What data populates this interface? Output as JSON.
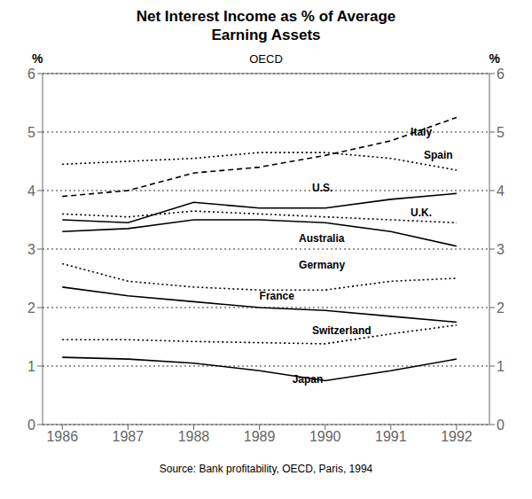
{
  "chart_data": {
    "type": "line",
    "title": "Net Interest Income as % of Average\nEarning Assets",
    "subtitle": "OECD",
    "y_label": "%",
    "y2_label": "%",
    "source": "Source: Bank profitability, OECD, Paris, 1994",
    "x": [
      1986,
      1987,
      1988,
      1989,
      1990,
      1991,
      1992
    ],
    "series": [
      {
        "name": "Italy",
        "color": "black",
        "line_style": "dashed",
        "values": [
          3.9,
          4.0,
          4.3,
          4.4,
          4.6,
          4.85,
          5.25
        ]
      },
      {
        "name": "Spain",
        "color": "black",
        "line_style": "dotted",
        "values": [
          4.45,
          4.5,
          4.55,
          4.65,
          4.65,
          4.55,
          4.35
        ]
      },
      {
        "name": "U.S.",
        "color": "black",
        "line_style": "solid",
        "values": [
          3.5,
          3.45,
          3.8,
          3.7,
          3.7,
          3.85,
          3.95
        ]
      },
      {
        "name": "U.K.",
        "color": "black",
        "line_style": "dotted",
        "values": [
          3.6,
          3.55,
          3.65,
          3.6,
          3.55,
          3.5,
          3.45
        ]
      },
      {
        "name": "Australia",
        "color": "black",
        "line_style": "solid",
        "values": [
          3.3,
          3.35,
          3.5,
          3.5,
          3.45,
          3.3,
          3.05
        ]
      },
      {
        "name": "Germany",
        "color": "black",
        "line_style": "dotted",
        "values": [
          2.75,
          2.45,
          2.35,
          2.3,
          2.3,
          2.45,
          2.5
        ]
      },
      {
        "name": "France",
        "color": "black",
        "line_style": "solid",
        "values": [
          2.35,
          2.2,
          2.1,
          2.0,
          1.95,
          1.85,
          1.75
        ]
      },
      {
        "name": "Switzerland",
        "color": "black",
        "line_style": "dotted",
        "values": [
          1.45,
          1.45,
          1.42,
          1.4,
          1.38,
          1.55,
          1.7
        ]
      },
      {
        "name": "Japan",
        "color": "black",
        "line_style": "solid",
        "values": [
          1.15,
          1.12,
          1.05,
          0.92,
          0.75,
          0.92,
          1.12
        ]
      }
    ],
    "xlim": [
      1985.7,
      1992.5
    ],
    "xticks": [
      1986,
      1987,
      1988,
      1989,
      1990,
      1991,
      1992
    ],
    "ylim": [
      0,
      6
    ],
    "yticks": [
      0,
      1,
      2,
      3,
      4,
      5,
      6
    ],
    "y2lim": [
      0,
      6
    ],
    "y2ticks": [
      0,
      1,
      2,
      3,
      4,
      5,
      6
    ],
    "grid": true,
    "annotations": [
      {
        "text": "Italy",
        "x": 1991.3,
        "y": 5.0
      },
      {
        "text": "Spain",
        "x": 1991.5,
        "y": 4.6
      },
      {
        "text": "U.S.",
        "x": 1989.8,
        "y": 4.05
      },
      {
        "text": "U.K.",
        "x": 1991.3,
        "y": 3.62
      },
      {
        "text": "Australia",
        "x": 1989.6,
        "y": 3.18
      },
      {
        "text": "Germany",
        "x": 1989.6,
        "y": 2.72
      },
      {
        "text": "France",
        "x": 1989.0,
        "y": 2.2
      },
      {
        "text": "Switzerland",
        "x": 1989.8,
        "y": 1.6
      },
      {
        "text": "Japan",
        "x": 1989.5,
        "y": 0.78
      }
    ]
  }
}
